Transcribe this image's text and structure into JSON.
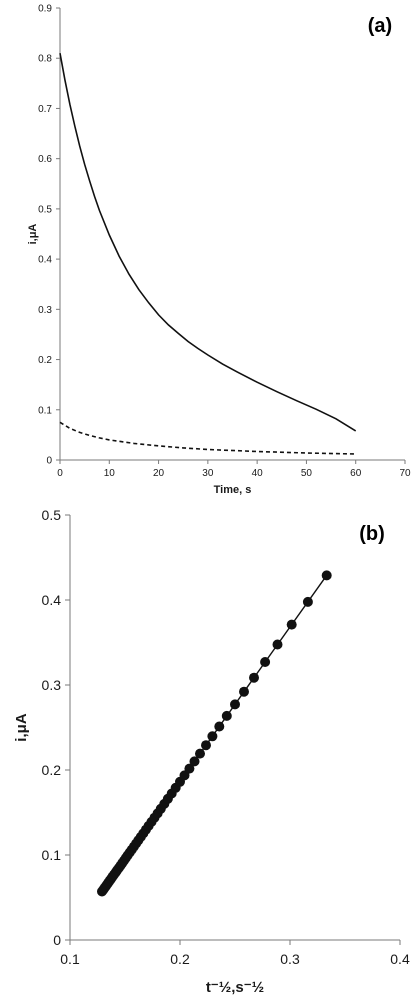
{
  "chart_data": [
    {
      "type": "line",
      "panel_label": "(a)",
      "xlabel": "Time, s",
      "ylabel": "i,μA",
      "xlim": [
        0,
        70
      ],
      "ylim": [
        0,
        0.9
      ],
      "x_ticks": [
        "0",
        "10",
        "20",
        "30",
        "40",
        "50",
        "60",
        "70"
      ],
      "y_ticks": [
        "0",
        "0.1",
        "0.2",
        "0.3",
        "0.4",
        "0.5",
        "0.6",
        "0.7",
        "0.8",
        "0.9"
      ],
      "grid": false,
      "series": [
        {
          "style": "solid",
          "x": [
            0,
            1,
            2,
            3,
            4,
            5,
            6,
            7,
            8,
            10,
            12,
            14,
            16,
            18,
            20,
            22,
            24,
            26,
            28,
            30,
            33,
            36,
            40,
            44,
            48,
            52,
            56,
            60
          ],
          "y": [
            0.81,
            0.757,
            0.708,
            0.665,
            0.625,
            0.589,
            0.556,
            0.525,
            0.497,
            0.448,
            0.406,
            0.37,
            0.339,
            0.313,
            0.289,
            0.269,
            0.252,
            0.236,
            0.222,
            0.209,
            0.191,
            0.175,
            0.155,
            0.136,
            0.118,
            0.101,
            0.082,
            0.058
          ]
        },
        {
          "style": "dashed",
          "x": [
            0,
            2,
            4,
            6,
            8,
            10,
            15,
            20,
            25,
            30,
            40,
            50,
            60
          ],
          "y": [
            0.075,
            0.063,
            0.055,
            0.049,
            0.044,
            0.04,
            0.033,
            0.028,
            0.024,
            0.021,
            0.017,
            0.014,
            0.012
          ]
        }
      ]
    },
    {
      "type": "scatter",
      "panel_label": "(b)",
      "xlabel": "t⁻½,s⁻½",
      "ylabel": "i,μA",
      "xlim": [
        0.1,
        0.4
      ],
      "ylim": [
        0,
        0.5
      ],
      "x_ticks": [
        "0.1",
        "0.2",
        "0.3",
        "0.4"
      ],
      "y_ticks": [
        "0",
        "0.1",
        "0.2",
        "0.3",
        "0.4",
        "0.5"
      ],
      "grid": false,
      "fit_line": {
        "x": [
          0.128,
          0.335
        ],
        "y": [
          0.055,
          0.432
        ]
      },
      "points_t": [
        60,
        59,
        58,
        57,
        56,
        55,
        54,
        53,
        52,
        51,
        50,
        49,
        48,
        47,
        46,
        45,
        44,
        43,
        42,
        41,
        40,
        39,
        38,
        37,
        36,
        35,
        34,
        33,
        32,
        31,
        30,
        29,
        28,
        27,
        26,
        25,
        24,
        23,
        22,
        21,
        20,
        19,
        18,
        17,
        16,
        15,
        14,
        13,
        12,
        11,
        10,
        9
      ]
    }
  ]
}
